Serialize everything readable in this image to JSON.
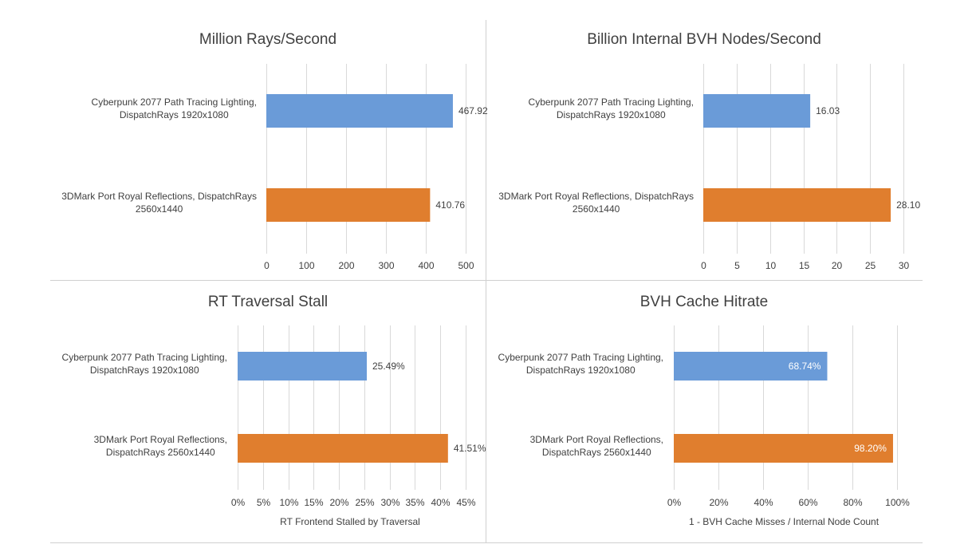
{
  "colors": {
    "cyberpunk": "#6a9bd8",
    "port_royal": "#e07e2e",
    "grid": "#d9d9d9",
    "text": "#404040",
    "divider": "#d0d0d0"
  },
  "chart_data": [
    {
      "type": "bar",
      "orientation": "horizontal",
      "title": "Million Rays/Second",
      "xlabel": "",
      "categories": [
        [
          "Cyberpunk 2077 Path Tracing Lighting,",
          "DispatchRays 1920x1080"
        ],
        [
          "3DMark Port Royal Reflections, DispatchRays",
          "2560x1440"
        ]
      ],
      "values": [
        467.92,
        410.76
      ],
      "data_labels": [
        "467.92",
        "410.76"
      ],
      "xlim": [
        0,
        500
      ],
      "xticks": [
        "0",
        "100",
        "200",
        "300",
        "400",
        "500"
      ],
      "grid": true,
      "label_inside": false
    },
    {
      "type": "bar",
      "orientation": "horizontal",
      "title": "Billion Internal BVH Nodes/Second",
      "xlabel": "",
      "categories": [
        [
          "Cyberpunk 2077 Path Tracing Lighting,",
          "DispatchRays 1920x1080"
        ],
        [
          "3DMark Port Royal Reflections, DispatchRays",
          "2560x1440"
        ]
      ],
      "values": [
        16.03,
        28.1
      ],
      "data_labels": [
        "16.03",
        "28.10"
      ],
      "xlim": [
        0,
        30
      ],
      "xticks": [
        "0",
        "5",
        "10",
        "15",
        "20",
        "25",
        "30"
      ],
      "grid": true,
      "label_inside": false
    },
    {
      "type": "bar",
      "orientation": "horizontal",
      "title": "RT Traversal Stall",
      "xlabel": "RT Frontend Stalled by Traversal",
      "categories": [
        [
          "Cyberpunk 2077 Path Tracing Lighting,",
          "DispatchRays 1920x1080"
        ],
        [
          "3DMark Port Royal Reflections,",
          "DispatchRays 2560x1440"
        ]
      ],
      "values": [
        25.49,
        41.51
      ],
      "data_labels": [
        "25.49%",
        "41.51%"
      ],
      "xlim": [
        0,
        45
      ],
      "xticks": [
        "0%",
        "5%",
        "10%",
        "15%",
        "20%",
        "25%",
        "30%",
        "35%",
        "40%",
        "45%"
      ],
      "grid": true,
      "label_inside": false
    },
    {
      "type": "bar",
      "orientation": "horizontal",
      "title": "BVH Cache Hitrate",
      "xlabel": "1 - BVH Cache Misses / Internal Node Count",
      "categories": [
        [
          "Cyberpunk 2077 Path Tracing Lighting,",
          "DispatchRays 1920x1080"
        ],
        [
          "3DMark Port Royal Reflections,",
          "DispatchRays 2560x1440"
        ]
      ],
      "values": [
        68.74,
        98.2
      ],
      "data_labels": [
        "68.74%",
        "98.20%"
      ],
      "xlim": [
        0,
        100
      ],
      "xticks": [
        "0%",
        "20%",
        "40%",
        "60%",
        "80%",
        "100%"
      ],
      "grid": true,
      "label_inside": true
    }
  ]
}
